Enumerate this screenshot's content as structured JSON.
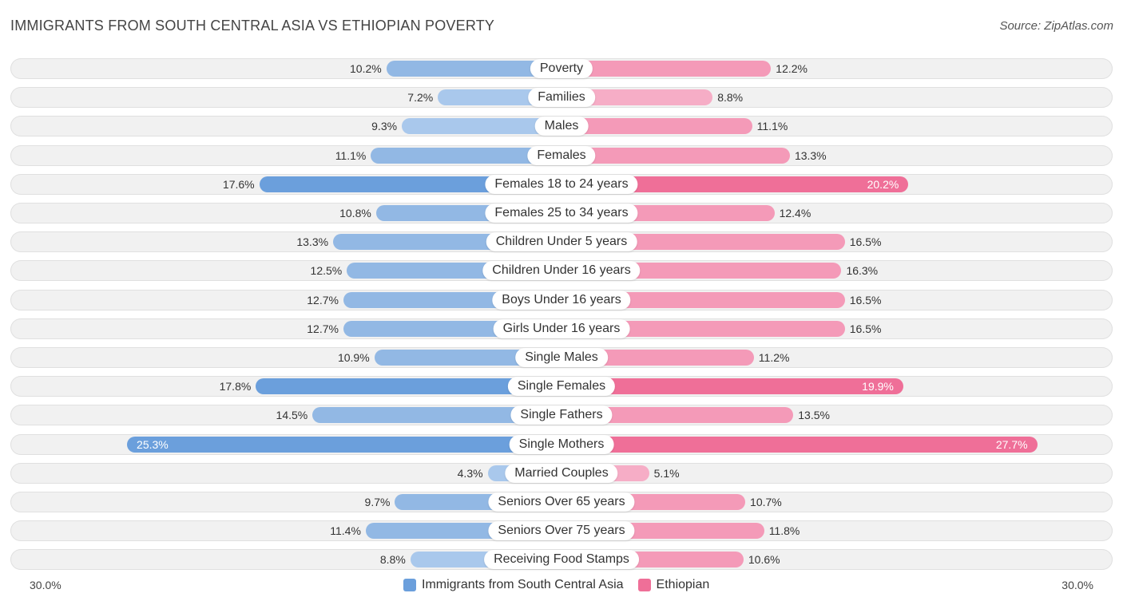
{
  "title": "IMMIGRANTS FROM SOUTH CENTRAL ASIA VS ETHIOPIAN POVERTY",
  "source": "Source: ZipAtlas.com",
  "colors": {
    "left": "#6b9fdc",
    "right": "#ef6f98"
  },
  "chart_data": {
    "type": "bar",
    "orientation": "horizontal-diverging",
    "title": "IMMIGRANTS FROM SOUTH CENTRAL ASIA VS ETHIOPIAN POVERTY",
    "axis_min_label": "30.0%",
    "axis_max_label": "30.0%",
    "xlim": [
      0,
      30
    ],
    "categories": [
      "Poverty",
      "Families",
      "Males",
      "Females",
      "Females 18 to 24 years",
      "Females 25 to 34 years",
      "Children Under 5 years",
      "Children Under 16 years",
      "Boys Under 16 years",
      "Girls Under 16 years",
      "Single Males",
      "Single Females",
      "Single Fathers",
      "Single Mothers",
      "Married Couples",
      "Seniors Over 65 years",
      "Seniors Over 75 years",
      "Receiving Food Stamps"
    ],
    "series": [
      {
        "name": "Immigrants from South Central Asia",
        "values": [
          10.2,
          7.2,
          9.3,
          11.1,
          17.6,
          10.8,
          13.3,
          12.5,
          12.7,
          12.7,
          10.9,
          17.8,
          14.5,
          25.3,
          4.3,
          9.7,
          11.4,
          8.8
        ],
        "labels": [
          "10.2%",
          "7.2%",
          "9.3%",
          "11.1%",
          "17.6%",
          "10.8%",
          "13.3%",
          "12.5%",
          "12.7%",
          "12.7%",
          "10.9%",
          "17.8%",
          "14.5%",
          "25.3%",
          "4.3%",
          "9.7%",
          "11.4%",
          "8.8%"
        ]
      },
      {
        "name": "Ethiopian",
        "values": [
          12.2,
          8.8,
          11.1,
          13.3,
          20.2,
          12.4,
          16.5,
          16.3,
          16.5,
          16.5,
          11.2,
          19.9,
          13.5,
          27.7,
          5.1,
          10.7,
          11.8,
          10.6
        ],
        "labels": [
          "12.2%",
          "8.8%",
          "11.1%",
          "13.3%",
          "20.2%",
          "12.4%",
          "16.5%",
          "16.3%",
          "16.5%",
          "16.5%",
          "11.2%",
          "19.9%",
          "13.5%",
          "27.7%",
          "5.1%",
          "10.7%",
          "11.8%",
          "10.6%"
        ]
      }
    ],
    "legend": [
      "Immigrants from South Central Asia",
      "Ethiopian"
    ]
  }
}
